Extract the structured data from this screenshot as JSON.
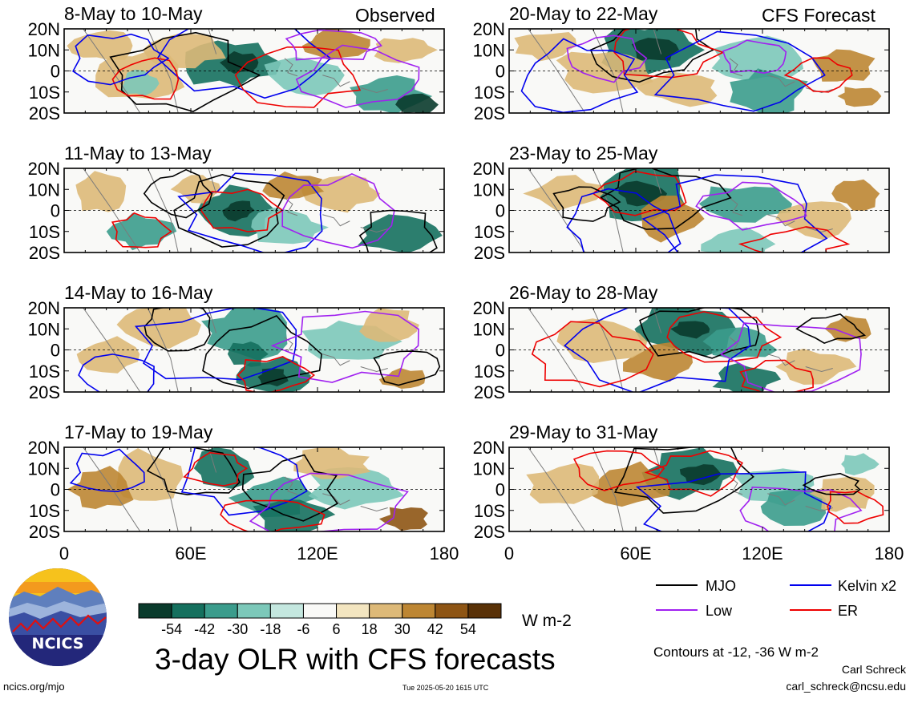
{
  "header": {
    "left_label": "Observed",
    "right_label": "CFS Forecast"
  },
  "panels": [
    {
      "title": "8-May to 10-May"
    },
    {
      "title": "20-May to 22-May"
    },
    {
      "title": "11-May to 13-May"
    },
    {
      "title": "23-May to 25-May"
    },
    {
      "title": "14-May to 16-May"
    },
    {
      "title": "26-May to 28-May"
    },
    {
      "title": "17-May to 19-May"
    },
    {
      "title": "29-May to 31-May"
    }
  ],
  "chart_data": {
    "type": "heatmap",
    "title": "3-day OLR with CFS forecasts",
    "x_axis": {
      "ticks": [
        "0",
        "60E",
        "120E",
        "180"
      ],
      "range": [
        0,
        180
      ]
    },
    "y_axis": {
      "ticks": [
        "20N",
        "10N",
        "0",
        "10S",
        "20S"
      ],
      "range": [
        -20,
        20
      ]
    },
    "colorbar": {
      "unit": "W m-2",
      "tick_labels": [
        "-54",
        "-42",
        "-30",
        "-18",
        "-6",
        "6",
        "18",
        "30",
        "42",
        "54"
      ],
      "colors": [
        "#0a3b2c",
        "#15705e",
        "#3b9c8c",
        "#7cc8b9",
        "#c4e7df",
        "#f9f9f7",
        "#f3e5c0",
        "#ddb978",
        "#bd8633",
        "#8e5514",
        "#593107"
      ]
    },
    "legend": [
      {
        "label": "MJO",
        "color": "#000000"
      },
      {
        "label": "Kelvin x2",
        "color": "#0000ee"
      },
      {
        "label": "Low",
        "color": "#a020f0"
      },
      {
        "label": "ER",
        "color": "#ee0000"
      }
    ],
    "contour_note": "Contours at -12, -36 W m-2"
  },
  "footer": {
    "logo_text": "NCICS",
    "url": "ncics.org/mjo",
    "timestamp": "Tue 2025-05-20 1615 UTC",
    "author": "Carl Schreck",
    "email": "carl_schreck@ncsu.edu"
  }
}
